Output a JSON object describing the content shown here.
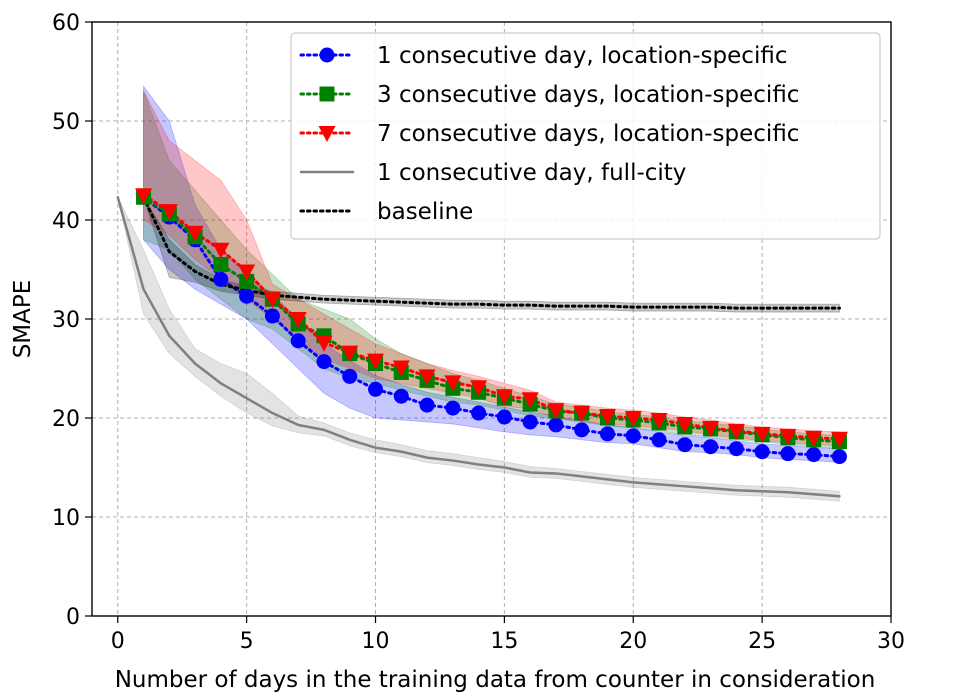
{
  "chart_data": {
    "type": "line",
    "xlabel": "Number of days in the training data from counter in consideration",
    "ylabel": "SMAPE",
    "xlim": [
      -1,
      30
    ],
    "ylim": [
      0,
      60
    ],
    "xticks": [
      0,
      5,
      10,
      15,
      20,
      25,
      30
    ],
    "yticks": [
      0,
      10,
      20,
      30,
      40,
      50,
      60
    ],
    "grid": true,
    "legend_position": "top-right",
    "series": [
      {
        "name": "1 consecutive day, location-specific",
        "color": "#0000ff",
        "marker": "circle",
        "linestyle": "dotted",
        "x": [
          1,
          2,
          3,
          4,
          5,
          6,
          7,
          8,
          9,
          10,
          11,
          12,
          13,
          14,
          15,
          16,
          17,
          18,
          19,
          20,
          21,
          22,
          23,
          24,
          25,
          26,
          27,
          28
        ],
        "y": [
          42.3,
          40.3,
          38.0,
          34.0,
          32.3,
          30.3,
          27.8,
          25.7,
          24.2,
          22.9,
          22.2,
          21.3,
          21.0,
          20.5,
          20.1,
          19.6,
          19.3,
          18.8,
          18.4,
          18.2,
          17.8,
          17.3,
          17.1,
          16.9,
          16.6,
          16.4,
          16.3,
          16.1
        ],
        "upper": [
          53.5,
          50.0,
          41.5,
          37.0,
          34.5,
          32.5,
          30.0,
          27.5,
          25.8,
          24.3,
          23.4,
          22.6,
          22.1,
          21.6,
          21.1,
          20.6,
          20.2,
          19.7,
          19.3,
          19.0,
          18.6,
          18.2,
          18.0,
          17.7,
          17.4,
          17.2,
          17.0,
          16.9
        ],
        "lower": [
          38.0,
          35.0,
          33.0,
          31.5,
          30.0,
          27.5,
          25.0,
          22.5,
          21.0,
          20.0,
          19.8,
          19.6,
          19.4,
          19.0,
          18.6,
          18.3,
          18.1,
          17.8,
          17.5,
          17.4,
          17.0,
          16.6,
          16.5,
          16.3,
          16.0,
          15.8,
          15.7,
          15.5
        ]
      },
      {
        "name": "3 consecutive days, location-specific",
        "color": "#008000",
        "marker": "square",
        "linestyle": "dotted",
        "x": [
          1,
          2,
          3,
          4,
          5,
          6,
          7,
          8,
          9,
          10,
          11,
          12,
          13,
          14,
          15,
          16,
          17,
          18,
          19,
          20,
          21,
          22,
          23,
          24,
          25,
          26,
          27,
          28
        ],
        "y": [
          42.3,
          40.6,
          38.3,
          35.5,
          33.8,
          32.0,
          29.5,
          28.3,
          26.5,
          25.5,
          24.6,
          23.8,
          23.0,
          22.6,
          22.0,
          21.4,
          20.7,
          20.5,
          20.0,
          19.8,
          19.5,
          19.1,
          18.9,
          18.6,
          18.3,
          18.0,
          17.8,
          17.6
        ],
        "upper": [
          53.0,
          46.0,
          43.0,
          40.0,
          37.0,
          34.5,
          32.0,
          31.0,
          30.0,
          28.0,
          26.5,
          25.5,
          24.5,
          23.8,
          23.0,
          22.2,
          21.4,
          21.1,
          20.6,
          20.4,
          20.1,
          19.7,
          19.5,
          19.2,
          18.9,
          18.6,
          18.4,
          18.2
        ],
        "lower": [
          38.0,
          37.0,
          34.0,
          32.0,
          30.0,
          29.0,
          27.0,
          25.0,
          24.0,
          23.5,
          22.8,
          22.2,
          21.6,
          21.3,
          20.8,
          20.2,
          19.9,
          19.6,
          19.2,
          19.0,
          18.7,
          18.3,
          18.1,
          17.8,
          17.6,
          17.3,
          17.1,
          16.9
        ]
      },
      {
        "name": "7 consecutive days, location-specific",
        "color": "#ff0000",
        "marker": "triangle-down",
        "linestyle": "dotted",
        "x": [
          1,
          2,
          3,
          4,
          5,
          6,
          7,
          8,
          9,
          10,
          11,
          12,
          13,
          14,
          15,
          16,
          17,
          18,
          19,
          20,
          21,
          22,
          23,
          24,
          25,
          26,
          27,
          28
        ],
        "y": [
          42.5,
          40.9,
          38.7,
          37.0,
          34.8,
          32.0,
          30.0,
          27.6,
          26.6,
          25.8,
          25.1,
          24.2,
          23.6,
          23.1,
          22.2,
          21.9,
          20.8,
          20.5,
          20.2,
          20.0,
          19.8,
          19.4,
          19.0,
          18.7,
          18.4,
          18.2,
          18.0,
          17.9
        ],
        "upper": [
          53.0,
          48.0,
          46.0,
          44.0,
          40.0,
          33.5,
          32.0,
          30.5,
          29.0,
          27.5,
          26.5,
          25.5,
          24.8,
          24.2,
          23.5,
          22.8,
          21.6,
          21.3,
          21.0,
          20.8,
          20.5,
          20.1,
          19.8,
          19.4,
          19.1,
          18.9,
          18.7,
          18.6
        ],
        "lower": [
          40.0,
          38.5,
          36.0,
          34.0,
          32.0,
          30.0,
          28.0,
          26.0,
          25.0,
          24.0,
          23.5,
          23.0,
          22.5,
          22.0,
          21.2,
          20.9,
          20.0,
          19.7,
          19.4,
          19.2,
          19.0,
          18.7,
          18.3,
          18.0,
          17.7,
          17.5,
          17.3,
          17.2
        ]
      },
      {
        "name": "1 consecutive day, full-city",
        "color": "#808080",
        "marker": "none",
        "linestyle": "solid",
        "x": [
          0,
          1,
          2,
          3,
          4,
          5,
          6,
          7,
          8,
          9,
          10,
          11,
          12,
          13,
          14,
          15,
          16,
          17,
          18,
          19,
          20,
          21,
          22,
          23,
          24,
          25,
          26,
          27,
          28
        ],
        "y": [
          42.3,
          33.0,
          28.3,
          25.5,
          23.5,
          22.0,
          20.5,
          19.3,
          18.8,
          17.8,
          17.0,
          16.6,
          16.0,
          15.7,
          15.3,
          15.0,
          14.5,
          14.4,
          14.1,
          13.8,
          13.5,
          13.3,
          13.1,
          12.9,
          12.7,
          12.6,
          12.5,
          12.3,
          12.1
        ],
        "upper": [
          42.3,
          37.0,
          31.0,
          27.0,
          25.5,
          24.5,
          22.5,
          20.2,
          19.5,
          18.5,
          17.8,
          17.3,
          16.7,
          16.4,
          16.0,
          15.6,
          15.1,
          14.9,
          14.6,
          14.3,
          14.0,
          13.8,
          13.6,
          13.4,
          13.2,
          13.1,
          13.0,
          12.8,
          12.6
        ],
        "lower": [
          42.3,
          30.5,
          26.5,
          24.2,
          22.2,
          20.5,
          19.2,
          18.5,
          18.2,
          17.2,
          16.5,
          16.1,
          15.5,
          15.2,
          14.8,
          14.5,
          14.0,
          13.9,
          13.6,
          13.3,
          13.0,
          12.8,
          12.6,
          12.4,
          12.2,
          12.1,
          12.0,
          11.8,
          11.6
        ]
      },
      {
        "name": "baseline",
        "color": "#000000",
        "marker": "none",
        "linestyle": "dotted",
        "x": [
          1,
          2,
          3,
          4,
          5,
          6,
          7,
          8,
          9,
          10,
          11,
          12,
          13,
          14,
          15,
          16,
          17,
          18,
          19,
          20,
          21,
          22,
          23,
          24,
          25,
          26,
          27,
          28
        ],
        "y": [
          42.3,
          36.8,
          34.8,
          33.5,
          32.9,
          32.4,
          32.2,
          32.0,
          31.9,
          31.8,
          31.7,
          31.6,
          31.5,
          31.5,
          31.4,
          31.4,
          31.3,
          31.3,
          31.3,
          31.2,
          31.2,
          31.2,
          31.2,
          31.1,
          31.1,
          31.1,
          31.1,
          31.1
        ],
        "upper": [
          42.3,
          38.0,
          35.5,
          34.0,
          33.3,
          32.8,
          32.6,
          32.4,
          32.3,
          32.2,
          32.1,
          32.0,
          31.9,
          31.9,
          31.8,
          31.8,
          31.7,
          31.7,
          31.7,
          31.6,
          31.6,
          31.6,
          31.6,
          31.5,
          31.5,
          31.5,
          31.5,
          31.5
        ],
        "lower": [
          42.3,
          34.2,
          33.7,
          32.8,
          32.4,
          32.0,
          31.8,
          31.6,
          31.5,
          31.4,
          31.3,
          31.2,
          31.1,
          31.1,
          31.0,
          31.0,
          30.9,
          30.9,
          30.9,
          30.8,
          30.8,
          30.8,
          30.8,
          30.7,
          30.7,
          30.7,
          30.7,
          30.7
        ]
      }
    ]
  }
}
